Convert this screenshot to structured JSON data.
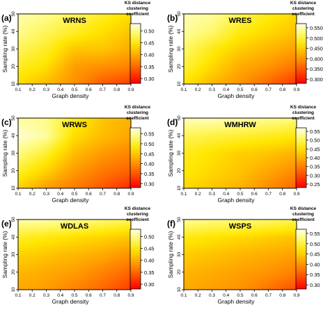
{
  "figure": {
    "axis_labels": {
      "xlabel": "Graph density",
      "ylabel": "Sampling rate (%)",
      "colorbar_title": [
        "KS distance",
        "clustering",
        "coefficient"
      ]
    },
    "x_ticks": [
      "0.1",
      "0.2",
      "0.3",
      "0.4",
      "0.5",
      "0.6",
      "0.7",
      "0.8",
      "0.9"
    ],
    "y_ticks": [
      "10",
      "20",
      "30",
      "40",
      "50"
    ]
  },
  "chart_data": [
    {
      "type": "heatmap",
      "panel": "(a)",
      "title": "WRNS",
      "xlabel": "Graph density",
      "ylabel": "Sampling rate (%)",
      "xlim": [
        0.1,
        0.9
      ],
      "ylim": [
        10,
        50
      ],
      "x": [
        0.1,
        0.3,
        0.5,
        0.7,
        0.9
      ],
      "y": [
        10,
        20,
        30,
        40,
        50
      ],
      "z": [
        [
          0.44,
          0.41,
          0.38,
          0.34,
          0.32
        ],
        [
          0.46,
          0.44,
          0.39,
          0.38,
          0.37
        ],
        [
          0.48,
          0.46,
          0.42,
          0.42,
          0.4
        ],
        [
          0.5,
          0.48,
          0.46,
          0.44,
          0.42
        ],
        [
          0.51,
          0.5,
          0.48,
          0.46,
          0.44
        ]
      ],
      "colorbar": {
        "ticks": [
          "0.50",
          "0.45",
          "0.40",
          "0.35",
          "0.30"
        ],
        "range": [
          0.28,
          0.53
        ]
      }
    },
    {
      "type": "heatmap",
      "panel": "(b)",
      "title": "WRES",
      "xlabel": "Graph density",
      "ylabel": "Sampling rate (%)",
      "xlim": [
        0.1,
        0.9
      ],
      "ylim": [
        10,
        50
      ],
      "x": [
        0.1,
        0.3,
        0.5,
        0.7,
        0.9
      ],
      "y": [
        10,
        20,
        30,
        40,
        50
      ],
      "z": [
        [
          0.47,
          0.43,
          0.4,
          0.36,
          0.32
        ],
        [
          0.5,
          0.46,
          0.42,
          0.4,
          0.37
        ],
        [
          0.52,
          0.48,
          0.45,
          0.43,
          0.41
        ],
        [
          0.54,
          0.52,
          0.48,
          0.46,
          0.44
        ],
        [
          0.55,
          0.54,
          0.51,
          0.48,
          0.46
        ]
      ],
      "colorbar": {
        "ticks": [
          "0.550",
          "0.500",
          "0.450",
          "0.400",
          "0.350",
          "0.300"
        ],
        "range": [
          0.28,
          0.57
        ]
      }
    },
    {
      "type": "heatmap",
      "panel": "(c)",
      "title": "WRWS",
      "xlabel": "Graph density",
      "ylabel": "Sampling rate (%)",
      "xlim": [
        0.1,
        0.9
      ],
      "ylim": [
        10,
        50
      ],
      "x": [
        0.1,
        0.3,
        0.5,
        0.7,
        0.9
      ],
      "y": [
        10,
        20,
        30,
        40,
        50
      ],
      "z": [
        [
          0.46,
          0.41,
          0.38,
          0.35,
          0.31
        ],
        [
          0.5,
          0.46,
          0.41,
          0.38,
          0.36
        ],
        [
          0.54,
          0.5,
          0.44,
          0.41,
          0.39
        ],
        [
          0.57,
          0.55,
          0.47,
          0.44,
          0.42
        ],
        [
          0.55,
          0.54,
          0.49,
          0.45,
          0.43
        ]
      ],
      "colorbar": {
        "ticks": [
          "0.55",
          "0.50",
          "0.45",
          "0.40",
          "0.35",
          "0.30"
        ],
        "range": [
          0.28,
          0.58
        ]
      }
    },
    {
      "type": "heatmap",
      "panel": "(d)",
      "title": "WMHRW",
      "xlabel": "Graph density",
      "ylabel": "Sampling rate (%)",
      "xlim": [
        0.1,
        0.9
      ],
      "ylim": [
        10,
        50
      ],
      "x": [
        0.1,
        0.3,
        0.5,
        0.7,
        0.9
      ],
      "y": [
        10,
        20,
        30,
        40,
        50
      ],
      "z": [
        [
          0.44,
          0.42,
          0.4,
          0.36,
          0.32
        ],
        [
          0.46,
          0.44,
          0.42,
          0.39,
          0.36
        ],
        [
          0.47,
          0.45,
          0.43,
          0.42,
          0.4
        ],
        [
          0.5,
          0.49,
          0.48,
          0.47,
          0.46
        ],
        [
          0.55,
          0.55,
          0.54,
          0.53,
          0.52
        ]
      ],
      "colorbar": {
        "ticks": [
          "0.55",
          "0.50",
          "0.45",
          "0.40",
          "0.35",
          "0.30",
          "0.25"
        ],
        "range": [
          0.23,
          0.57
        ]
      }
    },
    {
      "type": "heatmap",
      "panel": "(e)",
      "title": "WDLAS",
      "xlabel": "Graph density",
      "ylabel": "Sampling rate (%)",
      "xlim": [
        0.1,
        0.9
      ],
      "ylim": [
        10,
        50
      ],
      "x": [
        0.1,
        0.3,
        0.5,
        0.7,
        0.9
      ],
      "y": [
        10,
        20,
        30,
        40,
        50
      ],
      "z": [
        [
          0.4,
          0.39,
          0.37,
          0.35,
          0.32
        ],
        [
          0.41,
          0.4,
          0.39,
          0.37,
          0.35
        ],
        [
          0.43,
          0.42,
          0.41,
          0.4,
          0.38
        ],
        [
          0.46,
          0.45,
          0.44,
          0.43,
          0.42
        ],
        [
          0.51,
          0.51,
          0.5,
          0.49,
          0.48
        ]
      ],
      "colorbar": {
        "ticks": [
          "0.50",
          "0.45",
          "0.40",
          "0.35",
          "0.30"
        ],
        "range": [
          0.28,
          0.53
        ]
      }
    },
    {
      "type": "heatmap",
      "panel": "(f)",
      "title": "WSPS",
      "xlabel": "Graph density",
      "ylabel": "Sampling rate (%)",
      "xlim": [
        0.1,
        0.9
      ],
      "ylim": [
        10,
        50
      ],
      "x": [
        0.1,
        0.3,
        0.5,
        0.7,
        0.9
      ],
      "y": [
        10,
        20,
        30,
        40,
        50
      ],
      "z": [
        [
          0.42,
          0.41,
          0.4,
          0.37,
          0.34
        ],
        [
          0.43,
          0.42,
          0.41,
          0.4,
          0.38
        ],
        [
          0.45,
          0.44,
          0.43,
          0.42,
          0.41
        ],
        [
          0.48,
          0.47,
          0.46,
          0.45,
          0.44
        ],
        [
          0.54,
          0.53,
          0.53,
          0.52,
          0.51
        ]
      ],
      "colorbar": {
        "ticks": [
          "0.55",
          "0.50",
          "0.45",
          "0.40",
          "0.35",
          "0.30"
        ],
        "range": [
          0.28,
          0.57
        ]
      }
    }
  ]
}
